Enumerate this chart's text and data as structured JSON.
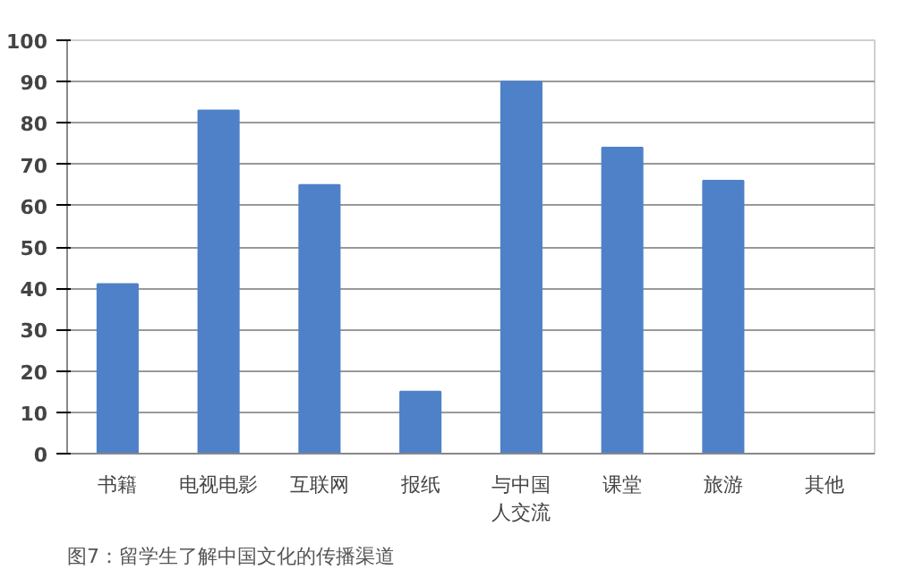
{
  "chart_data": {
    "type": "bar",
    "categories": [
      "书籍",
      "电视电影",
      "互联网",
      "报纸",
      "与中国人交流",
      "课堂",
      "旅游",
      "其他"
    ],
    "values": [
      41,
      83,
      65,
      15,
      90,
      74,
      66,
      0
    ],
    "color": "#4f81c8",
    "ylim": [
      0,
      100
    ],
    "yticks": [
      0,
      10,
      20,
      30,
      40,
      50,
      60,
      70,
      80,
      90,
      100
    ],
    "grid": "y",
    "annotations": [
      "图7：留学生了解中国文化的传播渠道"
    ]
  }
}
